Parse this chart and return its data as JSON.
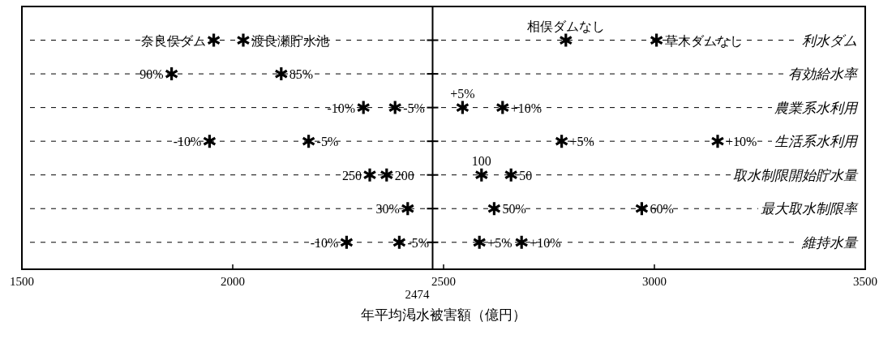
{
  "chart_data": {
    "type": "scatter",
    "orientation": "horizontal",
    "xlabel": "年平均渇水被害額（億円）",
    "categories": [
      "利水ダム",
      "有効給水率",
      "農業系水利用",
      "生活系水利用",
      "取水制限開始貯水量",
      "最大取水制限率",
      "維持水量"
    ],
    "series": [
      {
        "color": "#000000",
        "values": [
          1955,
          1855,
          2310,
          1945,
          2325,
          2415,
          2270
        ]
      },
      {
        "color": "#000000",
        "values": [
          2025,
          2115,
          2385,
          2180,
          2365,
          2620,
          2395
        ]
      },
      {
        "color": "#000000",
        "values": [
          2790,
          null,
          2545,
          2780,
          2590,
          2970,
          2585
        ]
      },
      {
        "color": "#000000",
        "values": [
          3005,
          null,
          2640,
          3150,
          2660,
          null,
          2685
        ]
      }
    ],
    "annotations": [
      {
        "text": "奈良俣ダム",
        "x": 1955,
        "y": "利水ダム"
      },
      {
        "text": "渡良瀬貯水池",
        "x": 2025,
        "y": "利水ダム"
      },
      {
        "text": "相俣ダムなし",
        "x": 2790,
        "y": "利水ダム"
      },
      {
        "text": "草木ダムなし",
        "x": 3005,
        "y": "利水ダム"
      },
      {
        "text": "90%",
        "x": 1855,
        "y": "有効給水率"
      },
      {
        "text": "85%",
        "x": 2115,
        "y": "有効給水率"
      },
      {
        "text": "-10%",
        "x": 2310,
        "y": "農業系水利用"
      },
      {
        "text": "-5%",
        "x": 2385,
        "y": "農業系水利用"
      },
      {
        "text": "+5%",
        "x": 2545,
        "y": "農業系水利用"
      },
      {
        "text": "+10%",
        "x": 2640,
        "y": "農業系水利用"
      },
      {
        "text": "-10%",
        "x": 1945,
        "y": "生活系水利用"
      },
      {
        "text": "-5%",
        "x": 2180,
        "y": "生活系水利用"
      },
      {
        "text": "+5%",
        "x": 2780,
        "y": "生活系水利用"
      },
      {
        "text": "+10%",
        "x": 3150,
        "y": "生活系水利用"
      },
      {
        "text": "250",
        "x": 2325,
        "y": "取水制限開始貯水量"
      },
      {
        "text": "200",
        "x": 2365,
        "y": "取水制限開始貯水量"
      },
      {
        "text": "100",
        "x": 2590,
        "y": "取水制限開始貯水量"
      },
      {
        "text": "50",
        "x": 2660,
        "y": "取水制限開始貯水量"
      },
      {
        "text": "30%",
        "x": 2415,
        "y": "最大取水制限率"
      },
      {
        "text": "50%",
        "x": 2620,
        "y": "最大取水制限率"
      },
      {
        "text": "60%",
        "x": 2970,
        "y": "最大取水制限率"
      },
      {
        "text": "-10%",
        "x": 2270,
        "y": "維持水量"
      },
      {
        "text": "-5%",
        "x": 2395,
        "y": "維持水量"
      },
      {
        "text": "+5%",
        "x": 2585,
        "y": "維持水量"
      },
      {
        "text": "+10%",
        "x": 2685,
        "y": "維持水量"
      }
    ],
    "xlim": [
      1500,
      3500
    ],
    "xticks": [
      1500,
      2000,
      2500,
      3000,
      3500
    ],
    "ref_lines": [
      {
        "axis": "x",
        "value": 2474,
        "label": "2474"
      }
    ],
    "grid": "y",
    "marker": "cross"
  }
}
